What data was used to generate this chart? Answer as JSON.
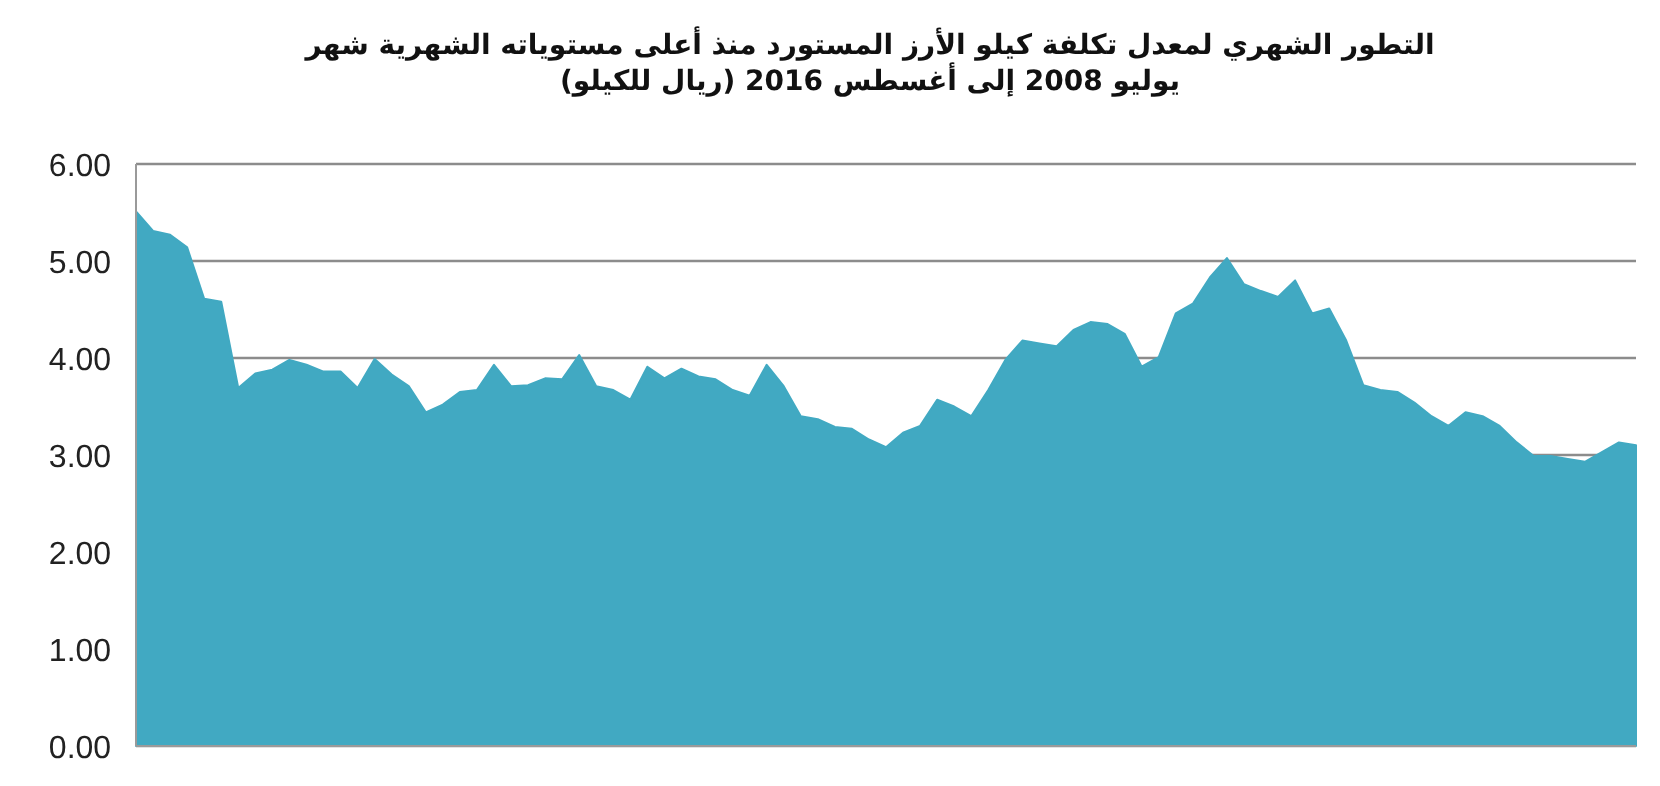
{
  "chart_data": {
    "type": "area",
    "title": "التطور الشهري لمعدل تكلفة كيلو الأرز المستورد منذ  أعلى مستوياته الشهرية شهر يوليو 2008 إلى أغسطس 2016 (ريال للكيلو)",
    "categories": [
      null,
      null,
      null,
      null,
      null,
      null,
      null,
      null,
      null,
      null,
      null,
      null,
      null,
      null,
      null,
      null,
      null,
      null,
      null,
      null,
      null,
      null,
      null,
      null,
      null,
      null,
      null,
      null,
      null,
      null,
      null,
      null,
      null,
      null,
      null,
      null,
      null,
      null,
      null,
      null,
      null,
      null,
      null,
      null,
      null,
      null,
      null,
      null,
      null,
      null,
      null,
      null,
      null,
      null,
      null,
      null,
      null,
      null,
      null,
      null,
      null,
      null,
      null,
      null,
      null,
      null,
      null,
      null,
      null,
      null,
      null,
      null,
      null,
      null,
      null,
      null,
      null,
      null,
      null,
      null,
      null,
      null,
      null,
      null,
      null,
      null,
      null,
      null,
      null
    ],
    "series": [
      {
        "color": "#41a9c2",
        "values": [
          5.51,
          5.31,
          5.27,
          5.14,
          4.61,
          4.58,
          3.69,
          3.84,
          3.88,
          3.98,
          3.93,
          3.86,
          3.86,
          3.69,
          3.99,
          3.83,
          3.71,
          3.44,
          3.52,
          3.65,
          3.67,
          3.93,
          3.71,
          3.72,
          3.79,
          3.78,
          4.03,
          3.71,
          3.67,
          3.57,
          3.91,
          3.79,
          3.89,
          3.81,
          3.78,
          3.67,
          3.61,
          3.93,
          3.71,
          3.4,
          3.37,
          3.29,
          3.27,
          3.16,
          3.08,
          3.23,
          3.3,
          3.57,
          3.5,
          3.4,
          3.67,
          3.98,
          4.18,
          4.15,
          4.12,
          4.29,
          4.37,
          4.35,
          4.25,
          3.91,
          4.01,
          4.46,
          4.56,
          4.83,
          5.03,
          4.76,
          4.69,
          4.63,
          4.8,
          4.46,
          4.51,
          4.18,
          3.72,
          3.67,
          3.65,
          3.54,
          3.4,
          3.3,
          3.44,
          3.4,
          3.3,
          3.13,
          2.99,
          2.99,
          2.96,
          2.93,
          3.03,
          3.13,
          3.1
        ]
      }
    ],
    "ylim": [
      0,
      6
    ],
    "yticks": [
      {
        "value": 0,
        "label": "0.00"
      },
      {
        "value": 1,
        "label": "1.00"
      },
      {
        "value": 2,
        "label": "2.00"
      },
      {
        "value": 3,
        "label": "3.00"
      },
      {
        "value": 4,
        "label": "4.00"
      },
      {
        "value": 5,
        "label": "5.00"
      },
      {
        "value": 6,
        "label": "6.00"
      }
    ],
    "grid": "y",
    "tick_labels": "y"
  }
}
